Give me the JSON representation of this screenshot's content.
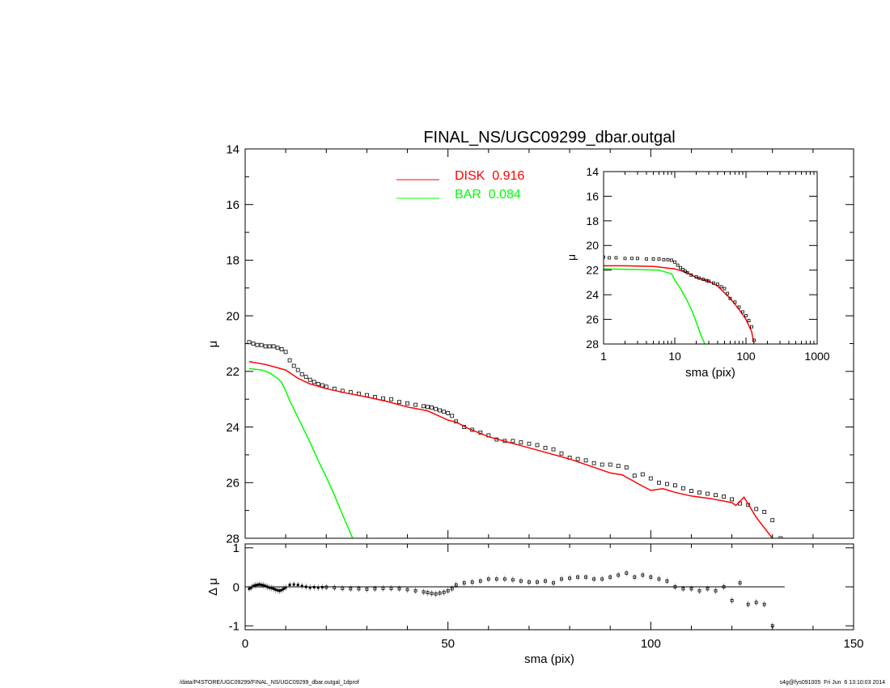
{
  "footer": {
    "left": "/data/P4STORE/UGC09299/FINAL_NS/UGC09299_dbar.outgal_1dprof",
    "right": "s4g@fys091005  Fri Jun  6 13:10:03 2014"
  },
  "chart_data": [
    {
      "type": "line",
      "panel": "main",
      "title": "FINAL_NS/UGC09299_dbar.outgal",
      "ylabel": "μ",
      "xlim": [
        0,
        150
      ],
      "ylim": [
        28,
        14
      ],
      "y_inverted": true,
      "yticks": [
        14,
        16,
        18,
        20,
        22,
        24,
        26,
        28
      ],
      "grid": false,
      "legend_position": "top-center",
      "series": [
        {
          "name": "DISK  0.916",
          "kind": "line",
          "color": "#ff0000",
          "x": [
            1,
            5,
            10,
            13,
            16,
            20,
            25,
            30,
            35,
            40,
            45,
            50,
            52,
            55,
            60,
            65,
            70,
            75,
            80,
            85,
            90,
            93,
            97,
            100,
            103,
            106,
            110,
            115,
            120,
            121,
            123,
            126,
            130
          ],
          "y": [
            21.65,
            21.75,
            21.95,
            22.25,
            22.45,
            22.62,
            22.78,
            22.92,
            23.08,
            23.28,
            23.42,
            23.75,
            23.82,
            24.05,
            24.35,
            24.55,
            24.75,
            24.95,
            25.15,
            25.4,
            25.65,
            25.72,
            26.05,
            26.28,
            26.22,
            26.35,
            26.48,
            26.58,
            26.72,
            26.82,
            26.52,
            27.25,
            28.0
          ]
        },
        {
          "name": "BAR  0.084",
          "kind": "line",
          "color": "#00ff00",
          "x": [
            1,
            4,
            6,
            8,
            9,
            10,
            11,
            12,
            14,
            16,
            18,
            20,
            22,
            24,
            26.5
          ],
          "y": [
            21.9,
            21.95,
            22.05,
            22.25,
            22.4,
            22.7,
            23.05,
            23.35,
            23.95,
            24.55,
            25.2,
            25.8,
            26.45,
            27.15,
            28.0
          ]
        },
        {
          "name": "",
          "kind": "points",
          "color": "#000000",
          "x": [
            1,
            2,
            3,
            4,
            5,
            6,
            7,
            8,
            9,
            10,
            11,
            12,
            13,
            14,
            15,
            16,
            17,
            18,
            19,
            20,
            22,
            24,
            26,
            28,
            30,
            32,
            34,
            36,
            38,
            40,
            42,
            44,
            45,
            46,
            47,
            48,
            49,
            50,
            51,
            52,
            54,
            56,
            58,
            60,
            62,
            64,
            66,
            68,
            70,
            72,
            74,
            76,
            78,
            80,
            82,
            84,
            86,
            88,
            90,
            92,
            94,
            96,
            98,
            100,
            102,
            104,
            106,
            108,
            110,
            112,
            114,
            116,
            118,
            120,
            122,
            124,
            126,
            128,
            130,
            132
          ],
          "y": [
            20.95,
            21.0,
            21.05,
            21.05,
            21.1,
            21.1,
            21.1,
            21.15,
            21.2,
            21.3,
            21.6,
            21.8,
            21.95,
            22.1,
            22.2,
            22.3,
            22.38,
            22.45,
            22.5,
            22.55,
            22.62,
            22.7,
            22.75,
            22.8,
            22.85,
            22.92,
            22.97,
            23.0,
            23.1,
            23.15,
            23.2,
            23.25,
            23.28,
            23.3,
            23.35,
            23.4,
            23.45,
            23.5,
            23.6,
            23.8,
            24.0,
            24.1,
            24.2,
            24.3,
            24.45,
            24.5,
            24.5,
            24.55,
            24.6,
            24.65,
            24.75,
            24.8,
            24.95,
            25.1,
            25.15,
            25.2,
            25.3,
            25.35,
            25.35,
            25.4,
            25.45,
            25.75,
            25.7,
            25.85,
            26.0,
            26.05,
            26.1,
            26.2,
            26.3,
            26.35,
            26.4,
            26.45,
            26.5,
            26.6,
            26.75,
            26.8,
            26.95,
            27.05,
            27.35,
            28.0
          ]
        }
      ]
    },
    {
      "type": "scatter",
      "panel": "residual",
      "xlabel": "sma (pix)",
      "ylabel": "Δ μ",
      "xlim": [
        0,
        150
      ],
      "ylim": [
        -1.1,
        1.1
      ],
      "xticks": [
        0,
        50,
        100,
        150
      ],
      "yticks": [
        -1,
        0,
        1
      ],
      "zero_line": true,
      "x": [
        1,
        1.5,
        2,
        2.5,
        3,
        3.5,
        4,
        4.5,
        5,
        5.5,
        6,
        6.5,
        7,
        7.5,
        8,
        8.5,
        9,
        9.5,
        10,
        11,
        12,
        13,
        14,
        15,
        16,
        17,
        18,
        19,
        20,
        22,
        24,
        26,
        28,
        30,
        32,
        34,
        36,
        38,
        40,
        42,
        44,
        45,
        46,
        47,
        48,
        49,
        50,
        51,
        52,
        54,
        56,
        58,
        60,
        62,
        64,
        66,
        68,
        70,
        72,
        74,
        76,
        78,
        80,
        82,
        84,
        86,
        88,
        90,
        92,
        94,
        96,
        98,
        100,
        102,
        104,
        106,
        108,
        110,
        112,
        114,
        116,
        118,
        120,
        122,
        124,
        126,
        128,
        130
      ],
      "y": [
        -0.05,
        -0.02,
        0.02,
        0.04,
        0.05,
        0.06,
        0.05,
        0.04,
        0.02,
        0.0,
        -0.02,
        -0.03,
        -0.05,
        -0.07,
        -0.09,
        -0.1,
        -0.08,
        -0.05,
        -0.02,
        0.05,
        0.06,
        0.05,
        0.02,
        0.0,
        -0.02,
        -0.01,
        -0.02,
        -0.01,
        -0.01,
        -0.02,
        -0.04,
        -0.05,
        -0.05,
        -0.06,
        -0.05,
        -0.04,
        -0.04,
        -0.05,
        -0.07,
        -0.1,
        -0.13,
        -0.15,
        -0.17,
        -0.18,
        -0.16,
        -0.14,
        -0.1,
        -0.05,
        0.05,
        0.1,
        0.12,
        0.15,
        0.2,
        0.2,
        0.2,
        0.18,
        0.15,
        0.12,
        0.12,
        0.15,
        0.1,
        0.2,
        0.22,
        0.25,
        0.25,
        0.2,
        0.2,
        0.25,
        0.3,
        0.35,
        0.25,
        0.3,
        0.25,
        0.2,
        0.15,
        0.0,
        -0.05,
        -0.05,
        -0.1,
        -0.05,
        -0.1,
        0.0,
        -0.35,
        0.1,
        -0.45,
        -0.4,
        -0.45,
        -1.0
      ]
    },
    {
      "type": "line",
      "panel": "inset",
      "xlabel": "sma (pix)",
      "ylabel": "μ",
      "xscale": "log",
      "xlim": [
        1,
        1000
      ],
      "ylim": [
        28,
        14
      ],
      "y_inverted": true,
      "xticks": [
        1,
        10,
        100,
        1000
      ],
      "yticks": [
        14,
        16,
        18,
        20,
        22,
        24,
        26,
        28
      ],
      "series": [
        {
          "name": "",
          "kind": "line",
          "color": "#ff0000",
          "x": [
            1,
            2,
            5,
            10,
            15,
            20,
            30,
            40,
            60,
            80,
            100,
            120,
            130
          ],
          "y": [
            21.65,
            21.65,
            21.7,
            21.9,
            22.2,
            22.6,
            22.9,
            23.3,
            24.3,
            25.2,
            26.0,
            27.0,
            28.0
          ]
        },
        {
          "name": "",
          "kind": "line",
          "color": "#00ff00",
          "x": [
            1,
            3,
            6,
            9,
            10,
            12,
            15,
            18,
            20,
            23,
            26.5
          ],
          "y": [
            21.9,
            21.95,
            22.0,
            22.3,
            22.8,
            23.5,
            24.5,
            25.5,
            26.2,
            27.2,
            28.0
          ]
        },
        {
          "name": "",
          "kind": "points",
          "color": "#000000",
          "x": [
            1,
            1.2,
            1.5,
            2,
            2.5,
            3,
            4,
            5,
            6,
            7,
            8,
            9,
            10,
            11,
            12,
            13,
            14,
            15,
            17,
            20,
            22,
            25,
            28,
            30,
            35,
            40,
            45,
            50,
            55,
            60,
            70,
            80,
            90,
            100,
            110,
            120,
            130
          ],
          "y": [
            20.95,
            21.0,
            21.0,
            21.05,
            21.05,
            21.05,
            21.1,
            21.1,
            21.1,
            21.15,
            21.15,
            21.2,
            21.35,
            21.6,
            21.8,
            21.95,
            22.1,
            22.2,
            22.4,
            22.55,
            22.65,
            22.75,
            22.85,
            22.9,
            23.05,
            23.15,
            23.35,
            23.5,
            23.9,
            24.3,
            24.6,
            25.0,
            25.4,
            25.7,
            26.1,
            26.6,
            27.7
          ]
        }
      ]
    }
  ]
}
